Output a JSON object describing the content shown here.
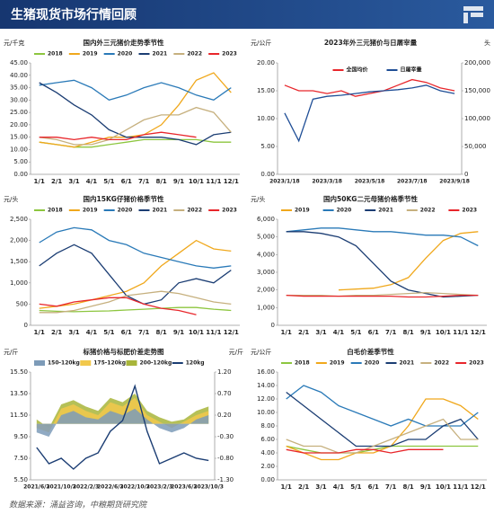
{
  "header": {
    "title": "生猪现货市场行情回顾"
  },
  "footer": {
    "source": "数据来源：涌益咨询，中粮期货研究院"
  },
  "chart_data": [
    {
      "type": "line",
      "title": "国内外三元猪价走势季节性",
      "y_label": "元/千克",
      "legend": "top",
      "categories": [
        "1/1",
        "2/1",
        "3/1",
        "4/1",
        "5/1",
        "6/1",
        "7/1",
        "8/1",
        "9/1",
        "10/1",
        "11/1",
        "12/1"
      ],
      "ylim": [
        0,
        45
      ],
      "yticks": [
        {
          "value": 0,
          "label": "0.00"
        },
        {
          "value": 5,
          "label": "5.00"
        },
        {
          "value": 10,
          "label": "10.00"
        },
        {
          "value": 15,
          "label": "15.00"
        },
        {
          "value": 20,
          "label": "20.00"
        },
        {
          "value": 25,
          "label": "25.00"
        },
        {
          "value": 30,
          "label": "30.00"
        },
        {
          "value": 35,
          "label": "35.00"
        },
        {
          "value": 40,
          "label": "40.00"
        },
        {
          "value": 45,
          "label": "45.00"
        }
      ],
      "series": [
        {
          "name": "2018",
          "color": "#8dc63f",
          "values": [
            13,
            12,
            11,
            11,
            12,
            13,
            14,
            14,
            14,
            14,
            13,
            13
          ]
        },
        {
          "name": "2019",
          "color": "#f0a81c",
          "values": [
            13,
            12,
            11,
            13,
            15,
            15,
            16,
            20,
            28,
            38,
            41,
            33
          ]
        },
        {
          "name": "2020",
          "color": "#2a7ab8",
          "values": [
            36,
            37,
            38,
            35,
            30,
            32,
            35,
            37,
            35,
            32,
            30,
            35
          ]
        },
        {
          "name": "2021",
          "color": "#1b3d73",
          "values": [
            37,
            33,
            28,
            24,
            18,
            15,
            15,
            15,
            14,
            12,
            16,
            17
          ]
        },
        {
          "name": "2022",
          "color": "#c6b07e",
          "values": [
            15,
            14,
            12,
            12,
            14,
            18,
            22,
            24,
            24,
            27,
            25,
            17
          ]
        },
        {
          "name": "2023",
          "color": "#e8262b",
          "values": [
            15,
            15,
            14,
            15,
            14,
            14,
            16,
            17,
            16,
            15,
            null,
            null
          ]
        }
      ]
    },
    {
      "type": "line",
      "title": "2023年外三元猪价与日屠宰量",
      "y_label": "元/公斤",
      "y2_label": "头",
      "legend": "inside",
      "categories": [
        "2023/1/18",
        null,
        null,
        "2023/3/18",
        null,
        null,
        "2023/5/18",
        null,
        null,
        "2023/7/18",
        null,
        null,
        "2023/9/18"
      ],
      "ylim": [
        0,
        20
      ],
      "yticks": [
        {
          "value": 0,
          "label": "0.00"
        },
        {
          "value": 5,
          "label": "5.00"
        },
        {
          "value": 10,
          "label": "10.00"
        },
        {
          "value": 15,
          "label": "15.00"
        },
        {
          "value": 20,
          "label": "20.00"
        }
      ],
      "y2lim": [
        0,
        200000
      ],
      "y2ticks": [
        0,
        {
          "value": 50000,
          "label": "50,000"
        },
        {
          "value": 100000,
          "label": "100,000"
        },
        {
          "value": 150000,
          "label": "150,000"
        },
        {
          "value": 200000,
          "label": "200,000"
        }
      ],
      "series": [
        {
          "name": "全国均价",
          "color": "#e8262b",
          "values": [
            16,
            15,
            15,
            14.5,
            15,
            14,
            14.5,
            15,
            16,
            17,
            16.5,
            15.5,
            15
          ]
        },
        {
          "name": "日屠宰量",
          "color": "#1f4e96",
          "axis": "y2",
          "values": [
            110000,
            60000,
            135000,
            140000,
            142000,
            145000,
            148000,
            150000,
            152000,
            155000,
            160000,
            150000,
            145000
          ]
        }
      ]
    },
    {
      "type": "line",
      "title": "国内15KG仔猪价格季节性",
      "y_label": "元/头",
      "legend": "top",
      "categories": [
        "1/1",
        "2/1",
        "3/1",
        "4/1",
        "5/1",
        "6/1",
        "7/1",
        "8/1",
        "9/1",
        "10/1",
        "11/1",
        "12/1"
      ],
      "ylim": [
        0,
        2500
      ],
      "yticks": [
        0,
        500,
        {
          "value": 1000,
          "label": "1,000"
        },
        {
          "value": 1500,
          "label": "1,500"
        },
        {
          "value": 2000,
          "label": "2,000"
        },
        {
          "value": 2500,
          "label": "2,500"
        }
      ],
      "series": [
        {
          "name": "2018",
          "color": "#8dc63f",
          "values": [
            350,
            330,
            320,
            330,
            340,
            360,
            380,
            400,
            420,
            420,
            380,
            350
          ]
        },
        {
          "name": "2019",
          "color": "#f0a81c",
          "values": [
            400,
            450,
            500,
            600,
            700,
            800,
            1000,
            1400,
            1700,
            2000,
            1800,
            1750
          ]
        },
        {
          "name": "2020",
          "color": "#2a7ab8",
          "values": [
            1950,
            2200,
            2300,
            2250,
            2000,
            1900,
            1700,
            1600,
            1500,
            1400,
            1350,
            1400
          ]
        },
        {
          "name": "2021",
          "color": "#1b3d73",
          "values": [
            1400,
            1700,
            1900,
            1700,
            1200,
            700,
            500,
            600,
            1000,
            1100,
            1000,
            1300
          ]
        },
        {
          "name": "2022",
          "color": "#c6b07e",
          "values": [
            300,
            300,
            350,
            450,
            550,
            700,
            750,
            800,
            750,
            650,
            550,
            500
          ]
        },
        {
          "name": "2023",
          "color": "#e8262b",
          "values": [
            500,
            450,
            550,
            600,
            650,
            650,
            500,
            400,
            350,
            250,
            null,
            null
          ]
        }
      ]
    },
    {
      "type": "line",
      "title": "国内50KG二元母猪价格季节性",
      "y_label": "元/头",
      "legend": "top",
      "categories": [
        "1/1",
        "2/1",
        "3/1",
        "4/1",
        "5/1",
        "6/1",
        "7/1",
        "8/1",
        "9/1",
        "10/1",
        "11/1",
        "12/1"
      ],
      "ylim": [
        0,
        6000
      ],
      "yticks": [
        0,
        {
          "value": 1000,
          "label": "1,000"
        },
        {
          "value": 2000,
          "label": "2,000"
        },
        {
          "value": 3000,
          "label": "3,000"
        },
        {
          "value": 4000,
          "label": "4,000"
        },
        {
          "value": 5000,
          "label": "5,000"
        },
        {
          "value": 6000,
          "label": "6,000"
        }
      ],
      "series": [
        {
          "name": "2019",
          "color": "#f0a81c",
          "values": [
            null,
            null,
            null,
            2000,
            2050,
            2100,
            2300,
            2700,
            3800,
            4800,
            5200,
            5300
          ]
        },
        {
          "name": "2020",
          "color": "#2a7ab8",
          "values": [
            5300,
            5400,
            5500,
            5500,
            5400,
            5300,
            5300,
            5200,
            5100,
            5100,
            5000,
            4500
          ]
        },
        {
          "name": "2021",
          "color": "#1b3d73",
          "values": [
            5300,
            5300,
            5200,
            5000,
            4500,
            3500,
            2500,
            2000,
            1800,
            1600,
            1650,
            1700
          ]
        },
        {
          "name": "2022",
          "color": "#c6b07e",
          "values": [
            1700,
            1700,
            1700,
            1650,
            1700,
            1700,
            1750,
            1800,
            1850,
            1800,
            1750,
            1700
          ]
        },
        {
          "name": "2023",
          "color": "#e8262b",
          "values": [
            1700,
            1650,
            1650,
            1650,
            1650,
            1650,
            1650,
            1600,
            1600,
            1650,
            1700,
            1700
          ]
        }
      ]
    },
    {
      "type": "area",
      "title": "标猪价格与标肥价差走势图",
      "y_label": "元/斤",
      "y2_label": "元/斤",
      "legend": "top",
      "categories": [
        "2021/6/3",
        null,
        "2021/10/3",
        null,
        "2022/2/3",
        null,
        "2022/6/3",
        null,
        "2022/10/3",
        null,
        "2023/2/3",
        null,
        "2023/6/3",
        null,
        "2023/10/3"
      ],
      "ylim": [
        5.5,
        15.5
      ],
      "yticks": [
        {
          "value": 5.5,
          "label": "5.50"
        },
        {
          "value": 7.5,
          "label": "7.50"
        },
        {
          "value": 9.5,
          "label": "9.50"
        },
        {
          "value": 11.5,
          "label": "11.50"
        },
        {
          "value": 13.5,
          "label": "13.50"
        },
        {
          "value": 15.5,
          "label": "15.50"
        }
      ],
      "y2lim": [
        -1.3,
        1.2
      ],
      "y2ticks": [
        {
          "value": -1.3,
          "label": "-1.30"
        },
        {
          "value": -0.8,
          "label": "-0.80"
        },
        {
          "value": -0.3,
          "label": "-0.30"
        },
        {
          "value": 0.2,
          "label": "0.20"
        },
        {
          "value": 0.7,
          "label": "0.70"
        },
        {
          "value": 1.2,
          "label": "1.20"
        }
      ],
      "series": [
        {
          "name": "150-120kg",
          "color": "#7d9bb8",
          "axis": "y2",
          "values": [
            -0.2,
            -0.3,
            0.2,
            0.3,
            0.15,
            0.1,
            0.3,
            0.2,
            0.35,
            0.1,
            -0.1,
            -0.2,
            -0.1,
            0.1,
            0.2
          ]
        },
        {
          "name": "175-120kg",
          "color": "#f2c84b",
          "axis": "y2",
          "values": [
            -0.1,
            -0.2,
            0.35,
            0.45,
            0.3,
            0.2,
            0.5,
            0.4,
            0.6,
            0.2,
            0.05,
            -0.1,
            0.05,
            0.2,
            0.3
          ]
        },
        {
          "name": "200-120kg",
          "color": "#a8b53a",
          "axis": "y2",
          "values": [
            0.1,
            -0.1,
            0.45,
            0.55,
            0.4,
            0.3,
            0.6,
            0.5,
            0.7,
            0.3,
            0.15,
            0.05,
            0.1,
            0.3,
            0.4
          ]
        },
        {
          "name": "120kg",
          "color": "#1b3d73",
          "values": [
            8.5,
            7.0,
            7.5,
            6.5,
            7.5,
            8.0,
            10,
            11,
            14.2,
            10,
            7.0,
            7.5,
            8.0,
            7.5,
            7.3
          ]
        }
      ]
    },
    {
      "type": "line",
      "title": "白毛价差季节性",
      "y_label": "元/公斤",
      "legend": "top",
      "categories": [
        "1/1",
        "2/1",
        "3/1",
        "4/1",
        "5/1",
        "6/1",
        "7/1",
        "8/1",
        "9/1",
        "10/1",
        "11/1",
        "12/1"
      ],
      "ylim": [
        0,
        16
      ],
      "yticks": [
        {
          "value": 0,
          "label": "0.00"
        },
        {
          "value": 2,
          "label": "2.00"
        },
        {
          "value": 4,
          "label": "4.00"
        },
        {
          "value": 6,
          "label": "6.00"
        },
        {
          "value": 8,
          "label": "8.00"
        },
        {
          "value": 10,
          "label": "10.00"
        },
        {
          "value": 12,
          "label": "12.00"
        },
        {
          "value": 14,
          "label": "14.00"
        },
        {
          "value": 16,
          "label": "16.00"
        }
      ],
      "series": [
        {
          "name": "2018",
          "color": "#8dc63f",
          "values": [
            5,
            4.5,
            4,
            4,
            4,
            4.5,
            5,
            5,
            5,
            5,
            5,
            5
          ]
        },
        {
          "name": "2019",
          "color": "#f0a81c",
          "values": [
            5,
            4,
            3,
            3,
            4,
            4,
            5,
            8,
            12,
            12,
            11,
            9
          ]
        },
        {
          "name": "2020",
          "color": "#2a7ab8",
          "values": [
            12,
            14,
            13,
            11,
            10,
            9,
            8,
            9,
            8,
            8,
            8,
            10
          ]
        },
        {
          "name": "2021",
          "color": "#1b3d73",
          "values": [
            13,
            11,
            9,
            7,
            5,
            5,
            5,
            6,
            6,
            8,
            9,
            6
          ]
        },
        {
          "name": "2022",
          "color": "#c6b07e",
          "values": [
            6,
            5,
            5,
            4,
            4,
            5,
            6,
            7,
            8,
            9,
            6,
            6
          ]
        },
        {
          "name": "2023",
          "color": "#e8262b",
          "values": [
            4.5,
            4,
            4,
            4,
            4.5,
            4.5,
            4,
            4.5,
            4.5,
            4.5,
            null,
            null
          ]
        }
      ]
    }
  ]
}
